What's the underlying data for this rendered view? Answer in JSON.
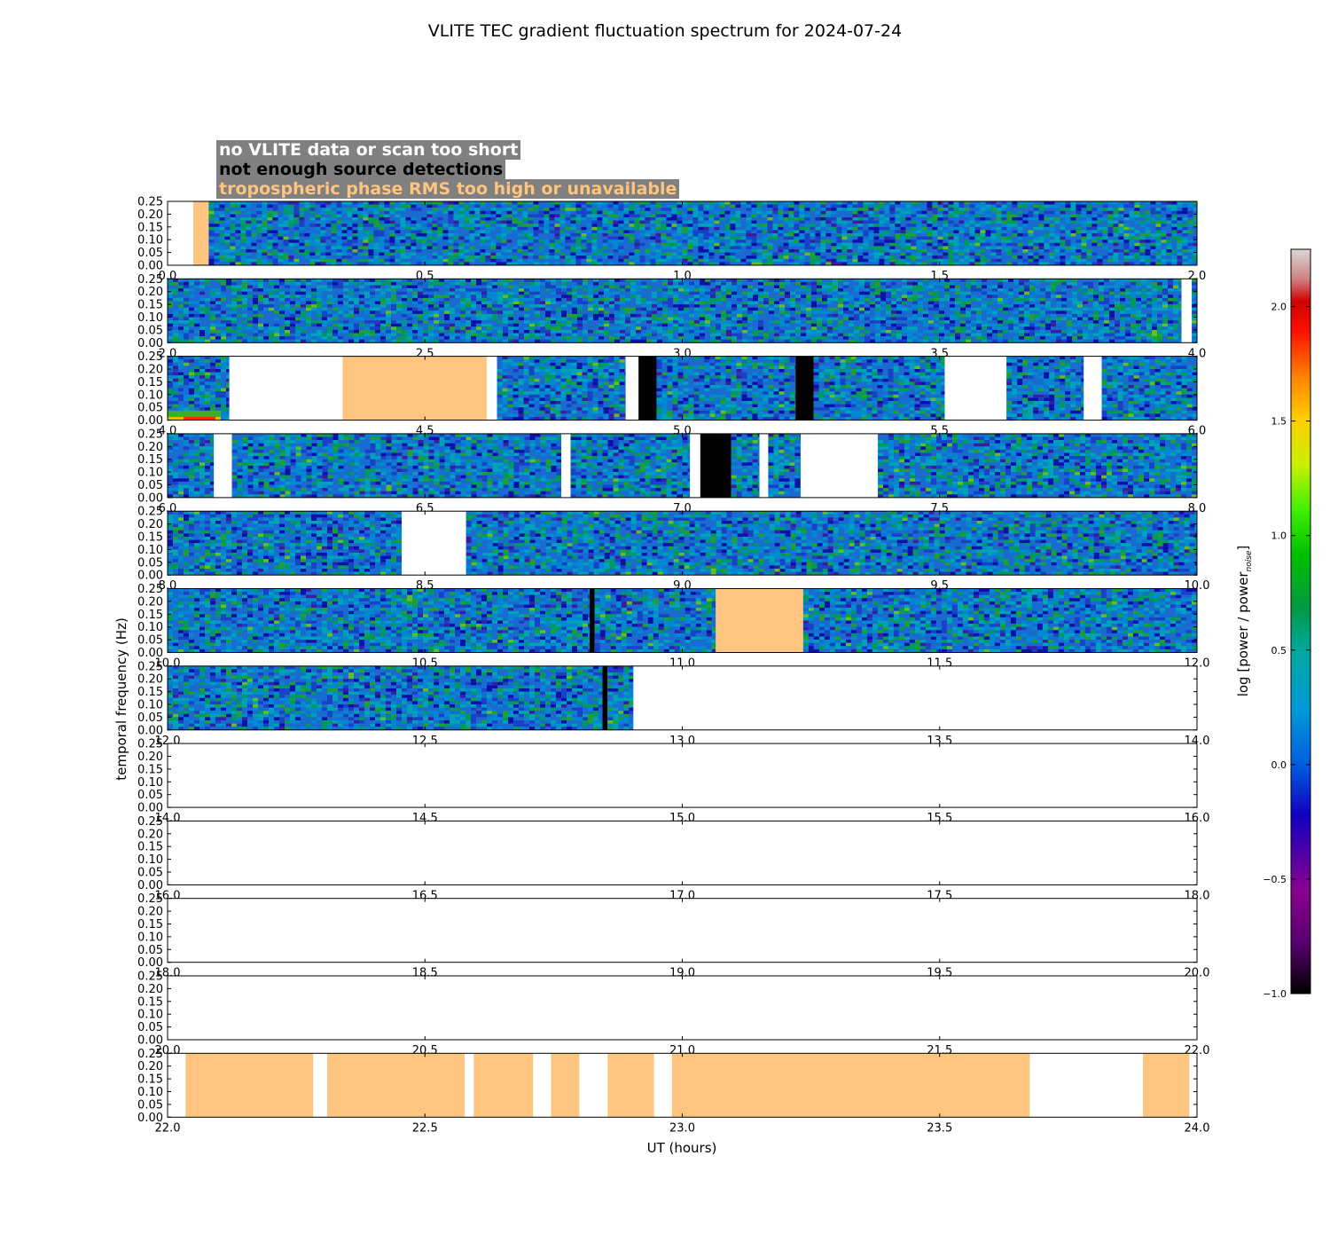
{
  "chart_data": {
    "type": "heatmap",
    "title": "VLITE TEC gradient fluctuation spectrum for 2024-07-24",
    "xlabel": "UT (hours)",
    "ylabel": "temporal frequency (Hz)",
    "colorbar_label_main": "log [power / power",
    "colorbar_label_sub": "noise",
    "colorbar_label_end": "]",
    "colorbar_range": [
      -1.0,
      2.25
    ],
    "colorbar_ticks": [
      "−1.0",
      "−0.5",
      "0.0",
      "0.5",
      "1.0",
      "1.5",
      "2.0"
    ],
    "colorbar_tick_values": [
      -1.0,
      -0.5,
      0.0,
      0.5,
      1.0,
      1.5,
      2.0
    ],
    "y_range": [
      0,
      0.25
    ],
    "y_ticks": [
      "0.00",
      "0.05",
      "0.10",
      "0.15",
      "0.20",
      "0.25"
    ],
    "y_tick_values": [
      0,
      0.05,
      0.1,
      0.15,
      0.2,
      0.25
    ],
    "legend": [
      {
        "label": "no VLITE data or scan too short",
        "color": "#ffffff"
      },
      {
        "label": "not enough source detections",
        "color": "#000000"
      },
      {
        "label": "tropospheric phase RMS too high or unavailable",
        "color": "#fdc57f"
      }
    ],
    "rows": [
      {
        "start": 0,
        "end": 2,
        "xticks": [
          "0.0",
          "0.5",
          "1.0",
          "1.5",
          "2.0"
        ],
        "segments": [
          {
            "s": 0.0,
            "e": 0.05,
            "k": "none"
          },
          {
            "s": 0.05,
            "e": 0.08,
            "k": "trop"
          },
          {
            "s": 0.08,
            "e": 2.0,
            "k": "data"
          }
        ]
      },
      {
        "start": 2,
        "end": 4,
        "xticks": [
          "2.0",
          "2.5",
          "3.0",
          "3.5",
          "4.0"
        ],
        "segments": [
          {
            "s": 2.0,
            "e": 3.97,
            "k": "data"
          },
          {
            "s": 3.97,
            "e": 3.99,
            "k": "none"
          },
          {
            "s": 3.99,
            "e": 4.0,
            "k": "data"
          }
        ]
      },
      {
        "start": 4,
        "end": 6,
        "xticks": [
          "4.0",
          "4.5",
          "5.0",
          "5.5",
          "6.0"
        ],
        "segments": [
          {
            "s": 4.0,
            "e": 4.12,
            "k": "data",
            "hot": true
          },
          {
            "s": 4.12,
            "e": 4.34,
            "k": "none"
          },
          {
            "s": 4.34,
            "e": 4.62,
            "k": "trop"
          },
          {
            "s": 4.62,
            "e": 4.64,
            "k": "none"
          },
          {
            "s": 4.64,
            "e": 4.89,
            "k": "data"
          },
          {
            "s": 4.89,
            "e": 4.915,
            "k": "none"
          },
          {
            "s": 4.915,
            "e": 4.95,
            "k": "det"
          },
          {
            "s": 4.95,
            "e": 5.22,
            "k": "data"
          },
          {
            "s": 5.22,
            "e": 5.255,
            "k": "det"
          },
          {
            "s": 5.255,
            "e": 5.51,
            "k": "data"
          },
          {
            "s": 5.51,
            "e": 5.63,
            "k": "none"
          },
          {
            "s": 5.63,
            "e": 5.78,
            "k": "data"
          },
          {
            "s": 5.78,
            "e": 5.815,
            "k": "none"
          },
          {
            "s": 5.815,
            "e": 6.0,
            "k": "data"
          }
        ]
      },
      {
        "start": 6,
        "end": 8,
        "xticks": [
          "6.0",
          "6.5",
          "7.0",
          "7.5",
          "8.0"
        ],
        "segments": [
          {
            "s": 6.0,
            "e": 6.09,
            "k": "data"
          },
          {
            "s": 6.09,
            "e": 6.125,
            "k": "none"
          },
          {
            "s": 6.125,
            "e": 6.765,
            "k": "data"
          },
          {
            "s": 6.765,
            "e": 6.783,
            "k": "none"
          },
          {
            "s": 6.783,
            "e": 7.015,
            "k": "data"
          },
          {
            "s": 7.015,
            "e": 7.035,
            "k": "none"
          },
          {
            "s": 7.035,
            "e": 7.095,
            "k": "det"
          },
          {
            "s": 7.095,
            "e": 7.15,
            "k": "data"
          },
          {
            "s": 7.15,
            "e": 7.167,
            "k": "none"
          },
          {
            "s": 7.167,
            "e": 7.23,
            "k": "data"
          },
          {
            "s": 7.23,
            "e": 7.38,
            "k": "none"
          },
          {
            "s": 7.38,
            "e": 8.0,
            "k": "data"
          }
        ]
      },
      {
        "start": 8,
        "end": 10,
        "xticks": [
          "8.0",
          "8.5",
          "9.0",
          "9.5",
          "10.0"
        ],
        "segments": [
          {
            "s": 8.0,
            "e": 8.455,
            "k": "data"
          },
          {
            "s": 8.455,
            "e": 8.58,
            "k": "none"
          },
          {
            "s": 8.58,
            "e": 10.0,
            "k": "data"
          }
        ]
      },
      {
        "start": 10,
        "end": 12,
        "xticks": [
          "10.0",
          "10.5",
          "11.0",
          "11.5",
          "12.0"
        ],
        "segments": [
          {
            "s": 10.0,
            "e": 10.82,
            "k": "data"
          },
          {
            "s": 10.82,
            "e": 10.83,
            "k": "det"
          },
          {
            "s": 10.83,
            "e": 11.065,
            "k": "data"
          },
          {
            "s": 11.065,
            "e": 11.235,
            "k": "trop"
          },
          {
            "s": 11.235,
            "e": 12.0,
            "k": "data"
          }
        ]
      },
      {
        "start": 12,
        "end": 14,
        "xticks": [
          "12.0",
          "12.5",
          "13.0",
          "13.5",
          "14.0"
        ],
        "segments": [
          {
            "s": 12.0,
            "e": 12.845,
            "k": "data"
          },
          {
            "s": 12.845,
            "e": 12.855,
            "k": "det"
          },
          {
            "s": 12.855,
            "e": 12.905,
            "k": "data"
          },
          {
            "s": 12.905,
            "e": 14.0,
            "k": "none"
          }
        ]
      },
      {
        "start": 14,
        "end": 16,
        "xticks": [
          "14.0",
          "14.5",
          "15.0",
          "15.5",
          "16.0"
        ],
        "segments": []
      },
      {
        "start": 16,
        "end": 18,
        "xticks": [
          "16.0",
          "16.5",
          "17.0",
          "17.5",
          "18.0"
        ],
        "segments": []
      },
      {
        "start": 18,
        "end": 20,
        "xticks": [
          "18.0",
          "18.5",
          "19.0",
          "19.5",
          "20.0"
        ],
        "segments": []
      },
      {
        "start": 20,
        "end": 22,
        "xticks": [
          "20.0",
          "20.5",
          "21.0",
          "21.5",
          "22.0"
        ],
        "segments": []
      },
      {
        "start": 22,
        "end": 24,
        "xticks": [
          "22.0",
          "22.5",
          "23.0",
          "23.5",
          "24.0"
        ],
        "segments": [
          {
            "s": 22.035,
            "e": 22.283,
            "k": "trop"
          },
          {
            "s": 22.31,
            "e": 22.577,
            "k": "trop"
          },
          {
            "s": 22.595,
            "e": 22.71,
            "k": "trop"
          },
          {
            "s": 22.745,
            "e": 22.8,
            "k": "trop"
          },
          {
            "s": 22.855,
            "e": 22.945,
            "k": "trop"
          },
          {
            "s": 22.98,
            "e": 23.675,
            "k": "trop"
          },
          {
            "s": 23.895,
            "e": 23.985,
            "k": "trop"
          }
        ]
      }
    ]
  }
}
